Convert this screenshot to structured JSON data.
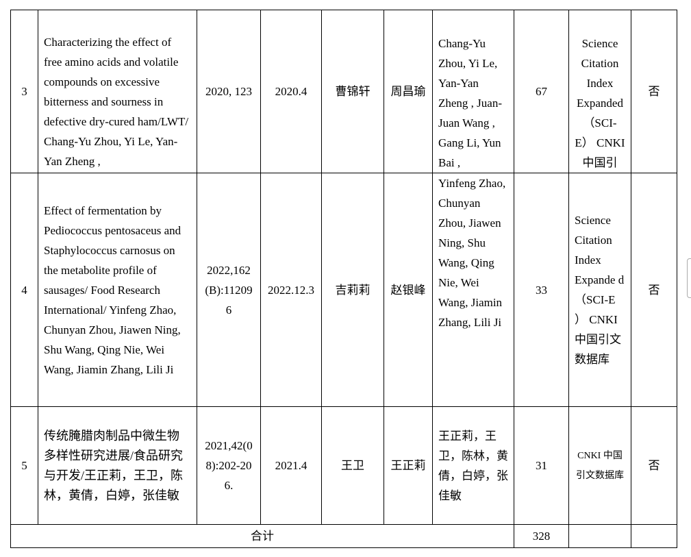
{
  "rows": [
    {
      "no": "3",
      "title": "Characterizing the effect of free amino acids and volatile compounds on excessive bitterness and sourness in defective dry-cured ham/LWT/ Chang-Yu Zhou, Yi Le, Yan-Yan Zheng ,",
      "volume": "2020, 123",
      "date": "2020.4",
      "person": "曹锦轩",
      "corresponding": "周昌瑜",
      "authors": "Chang-Yu Zhou, Yi Le, Yan-Yan Zheng , Juan-Juan Wang , Gang Li, Yun Bai ,",
      "citations": "67",
      "index": "Science Citation Index Expanded （SCI-E） CNKI 中国引",
      "flag": "否"
    },
    {
      "no": "4",
      "title": "Effect of fermentation by Pediococcus pentosaceus and Staphylococcus carnosus on the metabolite profile of sausages/ Food Research International/ Yinfeng Zhao, Chunyan Zhou, Jiawen Ning, Shu Wang, Qing Nie, Wei Wang, Jiamin Zhang, Lili Ji",
      "volume": "2022,162(B):112096",
      "date": "2022.12.3",
      "person": "吉莉莉",
      "corresponding": "赵银峰",
      "authors": "Yinfeng Zhao, Chunyan Zhou, Jiawen Ning, Shu Wang, Qing Nie, Wei Wang, Jiamin Zhang, Lili Ji",
      "citations": "33",
      "index": "Science Citation Index Expande d （SCI-E ） CNKI 中国引文数据库",
      "flag": "否"
    },
    {
      "no": "5",
      "title": "传统腌腊肉制品中微生物多样性研究进展/食品研究与开发/王正莉，王卫，陈林，黄倩，白婷，张佳敏",
      "volume": "2021,42(08):202-206.",
      "date": "2021.4",
      "person": "王卫",
      "corresponding": "王正莉",
      "authors": "王正莉，王卫，陈林，黄倩，白婷，张佳敏",
      "citations": "31",
      "index": "CNKI 中国引文数据库",
      "flag": "否"
    }
  ],
  "total": {
    "label": "合计",
    "citations": "328"
  }
}
